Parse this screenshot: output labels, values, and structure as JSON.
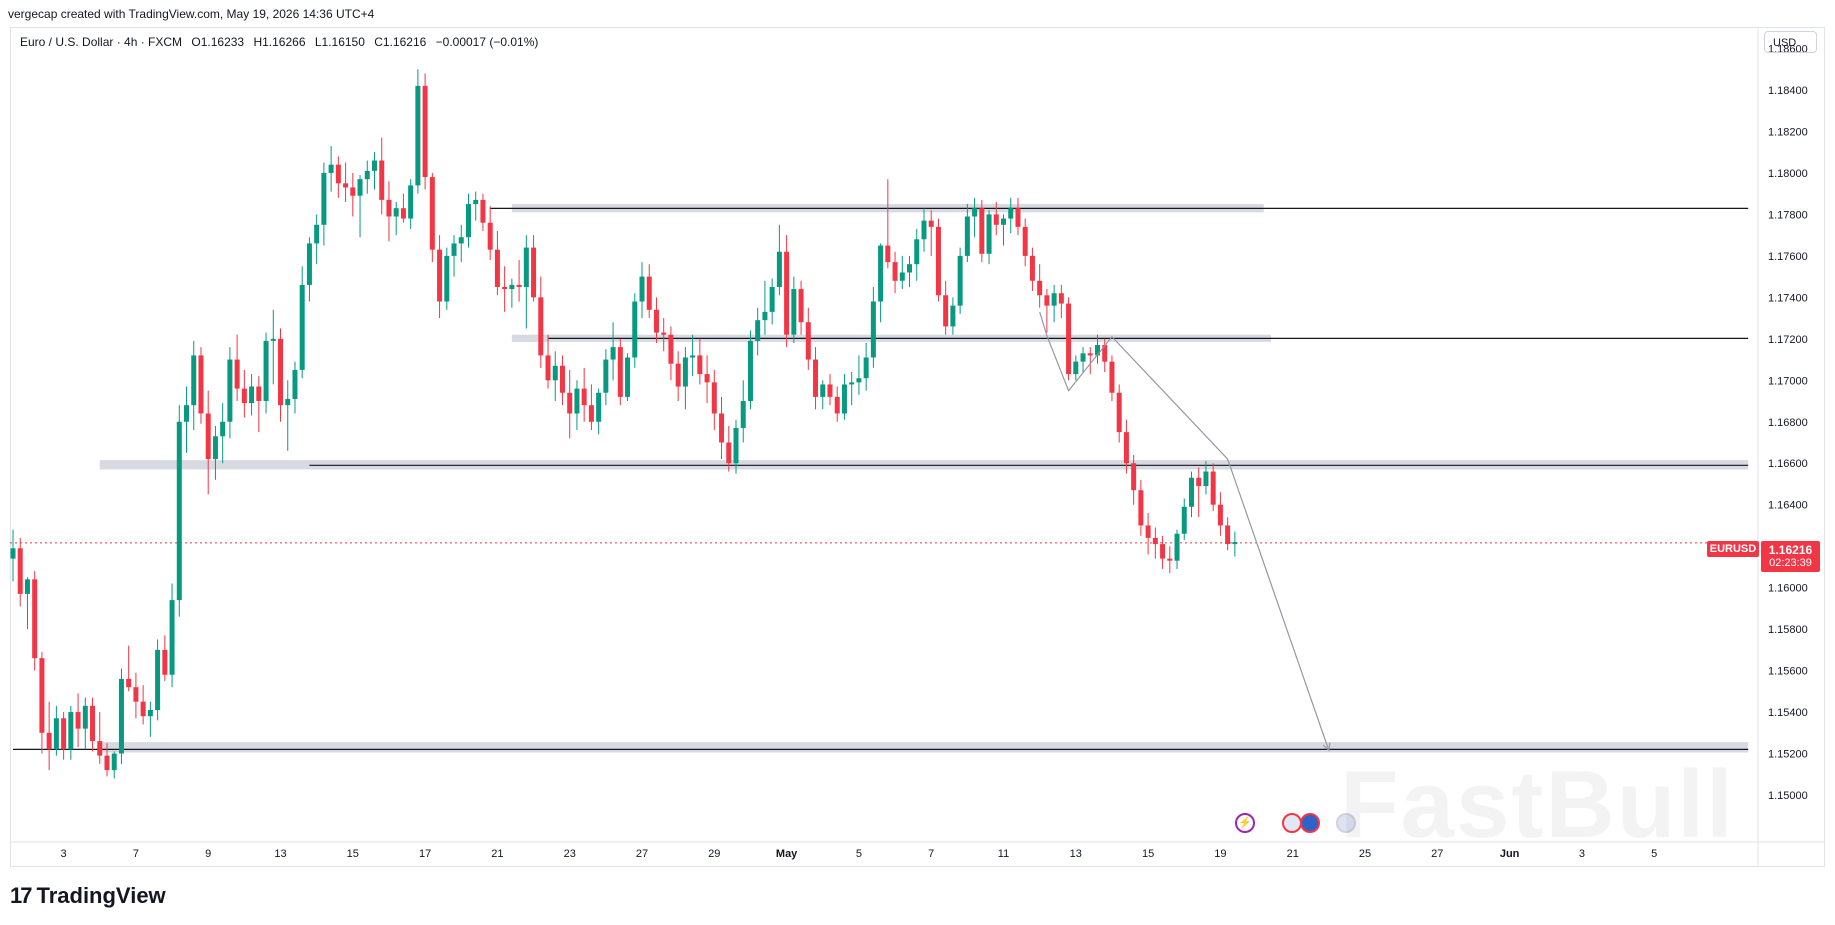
{
  "header": {
    "created_line": "vergecap created with TradingView.com, May 19, 2026 14:36 UTC+4",
    "symbol_desc": "Euro / U.S. Dollar · 4h · FXCM",
    "open": "O1.16233",
    "high": "H1.16266",
    "low": "L1.16150",
    "close": "C1.16216",
    "change": "−0.00017 (−0.01%)"
  },
  "axis": {
    "currency": "USD"
  },
  "price_badge": {
    "symbol": "EURUSD",
    "price": "1.16216",
    "countdown": "02:23:39"
  },
  "brand": {
    "name": "TradingView",
    "mark": "17"
  },
  "watermark": "FastBull",
  "events": [
    {
      "icon": "lightning-icon"
    },
    {
      "icon": "us-flag-icon"
    },
    {
      "icon": "eu-flag-icon"
    },
    {
      "icon": "eu-flag-icon"
    }
  ],
  "colors": {
    "up": "#089981",
    "down": "#f23645",
    "zone": "#d1d4dc",
    "line": "#131722",
    "arrow": "#9598a1"
  },
  "chart_data": {
    "type": "candlestick",
    "title": "",
    "ylim": [
      1.1482,
      1.1872
    ],
    "y_ticks": [
      "1.18600",
      "1.18400",
      "1.18200",
      "1.18000",
      "1.17800",
      "1.17600",
      "1.17400",
      "1.17200",
      "1.17000",
      "1.16800",
      "1.16600",
      "1.16400",
      "1.16200",
      "1.16000",
      "1.15800",
      "1.15600",
      "1.15400",
      "1.15200",
      "1.15000"
    ],
    "x_ticks": [
      {
        "label": "3",
        "i": 7
      },
      {
        "label": "7",
        "i": 17
      },
      {
        "label": "9",
        "i": 27
      },
      {
        "label": "13",
        "i": 37
      },
      {
        "label": "15",
        "i": 47
      },
      {
        "label": "17",
        "i": 57
      },
      {
        "label": "21",
        "i": 67
      },
      {
        "label": "23",
        "i": 77
      },
      {
        "label": "27",
        "i": 87
      },
      {
        "label": "29",
        "i": 97
      },
      {
        "label": "May",
        "i": 107
      },
      {
        "label": "5",
        "i": 117
      },
      {
        "label": "7",
        "i": 127
      },
      {
        "label": "11",
        "i": 137
      },
      {
        "label": "13",
        "i": 147
      },
      {
        "label": "15",
        "i": 157
      },
      {
        "label": "19",
        "i": 167
      },
      {
        "label": "21",
        "i": 177
      },
      {
        "label": "25",
        "i": 187
      },
      {
        "label": "27",
        "i": 197
      },
      {
        "label": "Jun",
        "i": 207
      },
      {
        "label": "3",
        "i": 217
      },
      {
        "label": "5",
        "i": 227
      }
    ],
    "ohlc": [
      [
        1.1614,
        1.1628,
        1.1603,
        1.1619
      ],
      [
        1.1619,
        1.1624,
        1.1591,
        1.1597
      ],
      [
        1.1597,
        1.1605,
        1.158,
        1.1604
      ],
      [
        1.1604,
        1.1608,
        1.156,
        1.1566
      ],
      [
        1.1566,
        1.1569,
        1.152,
        1.153
      ],
      [
        1.153,
        1.1545,
        1.1512,
        1.1522
      ],
      [
        1.1522,
        1.1543,
        1.1519,
        1.1537
      ],
      [
        1.1537,
        1.154,
        1.1517,
        1.1522
      ],
      [
        1.1522,
        1.1543,
        1.1517,
        1.154
      ],
      [
        1.154,
        1.1549,
        1.1523,
        1.1532
      ],
      [
        1.1532,
        1.1547,
        1.1522,
        1.1543
      ],
      [
        1.1543,
        1.1547,
        1.1521,
        1.1526
      ],
      [
        1.1526,
        1.154,
        1.1515,
        1.1519
      ],
      [
        1.1519,
        1.1525,
        1.1509,
        1.1512
      ],
      [
        1.1512,
        1.1521,
        1.1508,
        1.152
      ],
      [
        1.152,
        1.1561,
        1.1515,
        1.1556
      ],
      [
        1.1556,
        1.1572,
        1.155,
        1.1552
      ],
      [
        1.1552,
        1.1559,
        1.1537,
        1.1545
      ],
      [
        1.1545,
        1.1553,
        1.1534,
        1.1538
      ],
      [
        1.1538,
        1.1545,
        1.1528,
        1.1541
      ],
      [
        1.1541,
        1.1575,
        1.1536,
        1.157
      ],
      [
        1.157,
        1.1577,
        1.1555,
        1.1558
      ],
      [
        1.1558,
        1.1602,
        1.1552,
        1.1594
      ],
      [
        1.1594,
        1.1688,
        1.1586,
        1.168
      ],
      [
        1.168,
        1.1697,
        1.1665,
        1.1688
      ],
      [
        1.1688,
        1.1719,
        1.1676,
        1.1712
      ],
      [
        1.1712,
        1.1716,
        1.1679,
        1.1684
      ],
      [
        1.1684,
        1.1695,
        1.1645,
        1.1662
      ],
      [
        1.1662,
        1.1678,
        1.1652,
        1.1673
      ],
      [
        1.1673,
        1.1689,
        1.166,
        1.168
      ],
      [
        1.168,
        1.1716,
        1.1672,
        1.171
      ],
      [
        1.171,
        1.1722,
        1.169,
        1.1696
      ],
      [
        1.1696,
        1.1705,
        1.1682,
        1.1689
      ],
      [
        1.1689,
        1.1703,
        1.1683,
        1.1697
      ],
      [
        1.1697,
        1.1702,
        1.1675,
        1.169
      ],
      [
        1.169,
        1.1723,
        1.1684,
        1.1719
      ],
      [
        1.1719,
        1.1734,
        1.1698,
        1.172
      ],
      [
        1.172,
        1.1725,
        1.168,
        1.1688
      ],
      [
        1.1688,
        1.17,
        1.1666,
        1.1691
      ],
      [
        1.1691,
        1.1709,
        1.1684,
        1.1705
      ],
      [
        1.1705,
        1.1755,
        1.1701,
        1.1746
      ],
      [
        1.1746,
        1.1769,
        1.1738,
        1.1766
      ],
      [
        1.1766,
        1.178,
        1.1756,
        1.1775
      ],
      [
        1.1775,
        1.1805,
        1.1765,
        1.18
      ],
      [
        1.18,
        1.1813,
        1.1791,
        1.1804
      ],
      [
        1.1804,
        1.1808,
        1.1788,
        1.1795
      ],
      [
        1.1795,
        1.1805,
        1.1786,
        1.1793
      ],
      [
        1.1793,
        1.18,
        1.1779,
        1.1789
      ],
      [
        1.1789,
        1.1799,
        1.1769,
        1.1797
      ],
      [
        1.1797,
        1.1806,
        1.179,
        1.1801
      ],
      [
        1.1801,
        1.181,
        1.1792,
        1.1806
      ],
      [
        1.1806,
        1.1817,
        1.178,
        1.1787
      ],
      [
        1.1787,
        1.1796,
        1.1767,
        1.1779
      ],
      [
        1.1779,
        1.1786,
        1.177,
        1.1783
      ],
      [
        1.1783,
        1.179,
        1.1776,
        1.1778
      ],
      [
        1.1778,
        1.1797,
        1.1773,
        1.1794
      ],
      [
        1.1794,
        1.185,
        1.179,
        1.1842
      ],
      [
        1.1842,
        1.1848,
        1.1792,
        1.1798
      ],
      [
        1.1798,
        1.18,
        1.1757,
        1.1763
      ],
      [
        1.1763,
        1.177,
        1.173,
        1.1738
      ],
      [
        1.1738,
        1.1764,
        1.1734,
        1.176
      ],
      [
        1.176,
        1.177,
        1.175,
        1.1766
      ],
      [
        1.1766,
        1.1775,
        1.1757,
        1.1769
      ],
      [
        1.1769,
        1.179,
        1.1764,
        1.1785
      ],
      [
        1.1785,
        1.1791,
        1.1777,
        1.1787
      ],
      [
        1.1787,
        1.179,
        1.1772,
        1.1776
      ],
      [
        1.1776,
        1.1784,
        1.1758,
        1.1763
      ],
      [
        1.1763,
        1.1772,
        1.1741,
        1.1745
      ],
      [
        1.1745,
        1.1755,
        1.1733,
        1.1744
      ],
      [
        1.1744,
        1.1749,
        1.1735,
        1.1746
      ],
      [
        1.1746,
        1.1758,
        1.1738,
        1.1745
      ],
      [
        1.1745,
        1.177,
        1.1725,
        1.1764
      ],
      [
        1.1764,
        1.177,
        1.1738,
        1.174
      ],
      [
        1.174,
        1.175,
        1.1706,
        1.1712
      ],
      [
        1.1712,
        1.1722,
        1.1696,
        1.17
      ],
      [
        1.17,
        1.1714,
        1.169,
        1.1707
      ],
      [
        1.1707,
        1.1712,
        1.1688,
        1.1694
      ],
      [
        1.1694,
        1.1705,
        1.1672,
        1.1684
      ],
      [
        1.1684,
        1.17,
        1.1676,
        1.1696
      ],
      [
        1.1696,
        1.1706,
        1.168,
        1.1688
      ],
      [
        1.1688,
        1.1698,
        1.1676,
        1.168
      ],
      [
        1.168,
        1.1696,
        1.1674,
        1.1694
      ],
      [
        1.1694,
        1.1715,
        1.1688,
        1.171
      ],
      [
        1.171,
        1.1728,
        1.17,
        1.1716
      ],
      [
        1.1716,
        1.172,
        1.1688,
        1.1692
      ],
      [
        1.1692,
        1.1713,
        1.169,
        1.1711
      ],
      [
        1.1711,
        1.1742,
        1.1706,
        1.1738
      ],
      [
        1.1738,
        1.1757,
        1.173,
        1.175
      ],
      [
        1.175,
        1.1756,
        1.173,
        1.1734
      ],
      [
        1.1734,
        1.174,
        1.1718,
        1.1723
      ],
      [
        1.1723,
        1.173,
        1.1714,
        1.1722
      ],
      [
        1.1722,
        1.1726,
        1.17,
        1.1708
      ],
      [
        1.1708,
        1.1714,
        1.169,
        1.1697
      ],
      [
        1.1697,
        1.1716,
        1.1686,
        1.1711
      ],
      [
        1.1711,
        1.1722,
        1.1702,
        1.1712
      ],
      [
        1.1712,
        1.172,
        1.1698,
        1.1703
      ],
      [
        1.1703,
        1.1712,
        1.1689,
        1.1699
      ],
      [
        1.1699,
        1.1705,
        1.1676,
        1.1684
      ],
      [
        1.1684,
        1.1692,
        1.1662,
        1.167
      ],
      [
        1.167,
        1.1678,
        1.1656,
        1.166
      ],
      [
        1.166,
        1.1681,
        1.1655,
        1.1677
      ],
      [
        1.1677,
        1.17,
        1.167,
        1.169
      ],
      [
        1.169,
        1.1724,
        1.1686,
        1.1719
      ],
      [
        1.1719,
        1.1735,
        1.1712,
        1.1729
      ],
      [
        1.1729,
        1.1748,
        1.1722,
        1.1733
      ],
      [
        1.1733,
        1.1749,
        1.1727,
        1.1745
      ],
      [
        1.1745,
        1.1775,
        1.1741,
        1.1762
      ],
      [
        1.1762,
        1.177,
        1.1716,
        1.1722
      ],
      [
        1.1722,
        1.175,
        1.1718,
        1.1744
      ],
      [
        1.1744,
        1.1748,
        1.1722,
        1.1728
      ],
      [
        1.1728,
        1.1735,
        1.1705,
        1.171
      ],
      [
        1.171,
        1.1716,
        1.1686,
        1.1692
      ],
      [
        1.1692,
        1.17,
        1.1686,
        1.1698
      ],
      [
        1.1698,
        1.1703,
        1.1688,
        1.1692
      ],
      [
        1.1692,
        1.1697,
        1.168,
        1.1684
      ],
      [
        1.1684,
        1.1703,
        1.1681,
        1.1698
      ],
      [
        1.1698,
        1.1704,
        1.1688,
        1.1699
      ],
      [
        1.1699,
        1.1712,
        1.1693,
        1.1701
      ],
      [
        1.1701,
        1.1718,
        1.1695,
        1.1711
      ],
      [
        1.1711,
        1.1745,
        1.1706,
        1.1738
      ],
      [
        1.1738,
        1.1766,
        1.1728,
        1.1765
      ],
      [
        1.1765,
        1.1797,
        1.1754,
        1.1757
      ],
      [
        1.1757,
        1.1762,
        1.1742,
        1.1748
      ],
      [
        1.1748,
        1.176,
        1.1744,
        1.1752
      ],
      [
        1.1752,
        1.176,
        1.1745,
        1.1756
      ],
      [
        1.1756,
        1.1773,
        1.1748,
        1.1768
      ],
      [
        1.1768,
        1.1783,
        1.1762,
        1.1777
      ],
      [
        1.1777,
        1.1782,
        1.176,
        1.1774
      ],
      [
        1.1774,
        1.1778,
        1.1738,
        1.1741
      ],
      [
        1.1741,
        1.1748,
        1.1722,
        1.1726
      ],
      [
        1.1726,
        1.174,
        1.1722,
        1.1736
      ],
      [
        1.1736,
        1.1764,
        1.1732,
        1.176
      ],
      [
        1.176,
        1.1785,
        1.1757,
        1.1779
      ],
      [
        1.1779,
        1.1788,
        1.1769,
        1.1783
      ],
      [
        1.1783,
        1.1787,
        1.1757,
        1.1761
      ],
      [
        1.1761,
        1.1782,
        1.1756,
        1.178
      ],
      [
        1.178,
        1.1786,
        1.177,
        1.1775
      ],
      [
        1.1775,
        1.178,
        1.1765,
        1.1778
      ],
      [
        1.1778,
        1.1788,
        1.1771,
        1.1783
      ],
      [
        1.1783,
        1.1788,
        1.177,
        1.1774
      ],
      [
        1.1774,
        1.1778,
        1.1755,
        1.176
      ],
      [
        1.176,
        1.1764,
        1.1743,
        1.1748
      ],
      [
        1.1748,
        1.1756,
        1.1735,
        1.1741
      ],
      [
        1.1741,
        1.1744,
        1.1723,
        1.1736
      ],
      [
        1.1736,
        1.1746,
        1.1728,
        1.1742
      ],
      [
        1.1742,
        1.1746,
        1.173,
        1.1737
      ],
      [
        1.1737,
        1.174,
        1.17,
        1.1703
      ],
      [
        1.1703,
        1.1712,
        1.17,
        1.1709
      ],
      [
        1.1709,
        1.1716,
        1.1704,
        1.1713
      ],
      [
        1.1713,
        1.1716,
        1.1703,
        1.1712
      ],
      [
        1.1712,
        1.1722,
        1.1708,
        1.1717
      ],
      [
        1.1717,
        1.172,
        1.1704,
        1.1709
      ],
      [
        1.1709,
        1.1712,
        1.169,
        1.1694
      ],
      [
        1.1694,
        1.1698,
        1.167,
        1.1675
      ],
      [
        1.1675,
        1.1681,
        1.1655,
        1.166
      ],
      [
        1.166,
        1.1664,
        1.164,
        1.1647
      ],
      [
        1.1647,
        1.1652,
        1.1625,
        1.163
      ],
      [
        1.163,
        1.1636,
        1.1616,
        1.1624
      ],
      [
        1.1624,
        1.1629,
        1.1614,
        1.1621
      ],
      [
        1.1621,
        1.1625,
        1.1609,
        1.1614
      ],
      [
        1.1614,
        1.162,
        1.1607,
        1.1613
      ],
      [
        1.1613,
        1.1628,
        1.1609,
        1.1626
      ],
      [
        1.1626,
        1.1643,
        1.1623,
        1.1639
      ],
      [
        1.1639,
        1.1656,
        1.1634,
        1.1653
      ],
      [
        1.1653,
        1.1658,
        1.1634,
        1.1649
      ],
      [
        1.1649,
        1.1661,
        1.1645,
        1.1656
      ],
      [
        1.1656,
        1.166,
        1.1637,
        1.164
      ],
      [
        1.164,
        1.1646,
        1.1625,
        1.163
      ],
      [
        1.163,
        1.1634,
        1.1618,
        1.1621
      ],
      [
        1.1621,
        1.1627,
        1.1615,
        1.1622
      ]
    ],
    "zones": [
      {
        "name": "resistance-zone",
        "y1": 1.1785,
        "y2": 1.1781,
        "i_start": 69,
        "i_end": 173
      },
      {
        "name": "mid-zone",
        "y1": 1.1722,
        "y2": 1.17185,
        "i_start": 69,
        "i_end": 174
      },
      {
        "name": "support-zone",
        "y1": 1.16615,
        "y2": 1.1657,
        "i_start": 12,
        "i_end": 240
      },
      {
        "name": "target-zone",
        "y1": 1.15255,
        "y2": 1.15205,
        "i_start": 12,
        "i_end": 240
      }
    ],
    "levels": [
      {
        "y": 1.17829,
        "i_start": 66,
        "i_end": 240
      },
      {
        "y": 1.17202,
        "i_start": 74,
        "i_end": 240
      },
      {
        "y": 1.1659,
        "i_start": 41,
        "i_end": 240
      },
      {
        "y": 1.1522,
        "i_start": 0,
        "i_end": 240
      }
    ],
    "projection": [
      {
        "i": 142,
        "y": 1.1733
      },
      {
        "i": 143,
        "y": 1.17215
      },
      {
        "i": 146,
        "y": 1.1695
      },
      {
        "i": 152,
        "y": 1.1721
      },
      {
        "i": 168,
        "y": 1.1662
      },
      {
        "i": 182,
        "y": 1.15215
      }
    ],
    "current_price": 1.16216
  }
}
